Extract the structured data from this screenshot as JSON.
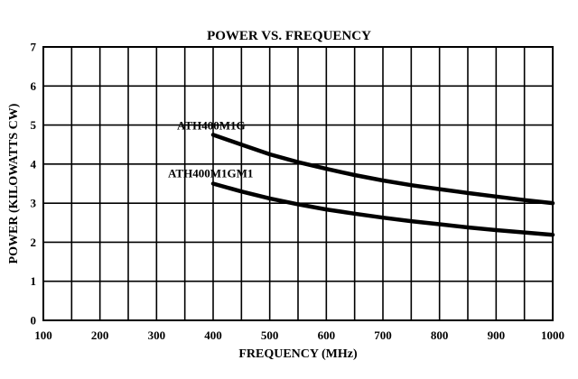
{
  "chart_data": {
    "type": "line",
    "title": "POWER VS. FREQUENCY",
    "xlabel": "FREQUENCY (MHz)",
    "ylabel": "POWER (KILOWATTS CW)",
    "xlim": [
      100,
      1000
    ],
    "ylim": [
      0,
      7
    ],
    "xticks": [
      100,
      200,
      300,
      400,
      500,
      600,
      700,
      800,
      900,
      1000
    ],
    "yticks": [
      0,
      1,
      2,
      3,
      4,
      5,
      6,
      7
    ],
    "x_minor_step": 50,
    "grid": true,
    "series": [
      {
        "name": "ATH400M1G",
        "x": [
          400,
          450,
          500,
          550,
          600,
          650,
          700,
          750,
          800,
          850,
          900,
          950,
          1000
        ],
        "y": [
          4.75,
          4.5,
          4.25,
          4.05,
          3.88,
          3.72,
          3.58,
          3.46,
          3.36,
          3.26,
          3.17,
          3.08,
          3.0
        ]
      },
      {
        "name": "ATH400M1GM1",
        "x": [
          400,
          450,
          500,
          550,
          600,
          650,
          700,
          750,
          800,
          850,
          900,
          950,
          1000
        ],
        "y": [
          3.5,
          3.3,
          3.12,
          2.97,
          2.84,
          2.73,
          2.63,
          2.54,
          2.46,
          2.38,
          2.31,
          2.25,
          2.19
        ]
      }
    ]
  }
}
